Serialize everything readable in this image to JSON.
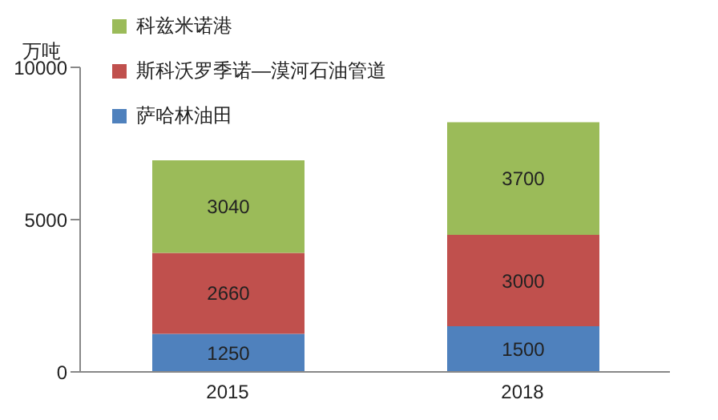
{
  "chart_data": {
    "type": "bar",
    "stacked": true,
    "ylabel": "万吨",
    "categories": [
      "2015",
      "2018"
    ],
    "series": [
      {
        "name": "萨哈林油田",
        "color": "#4f81bd",
        "values": [
          1250,
          1500
        ]
      },
      {
        "name": "斯科沃罗季诺—漠河石油管道",
        "color": "#c0504d",
        "values": [
          2660,
          3000
        ]
      },
      {
        "name": "科兹米诺港",
        "color": "#9bbb59",
        "values": [
          3040,
          3700
        ]
      }
    ],
    "ylim": [
      0,
      10000
    ],
    "yticks": [
      0,
      5000,
      10000
    ],
    "grid": false,
    "legend": "top left",
    "data_labels": true
  }
}
